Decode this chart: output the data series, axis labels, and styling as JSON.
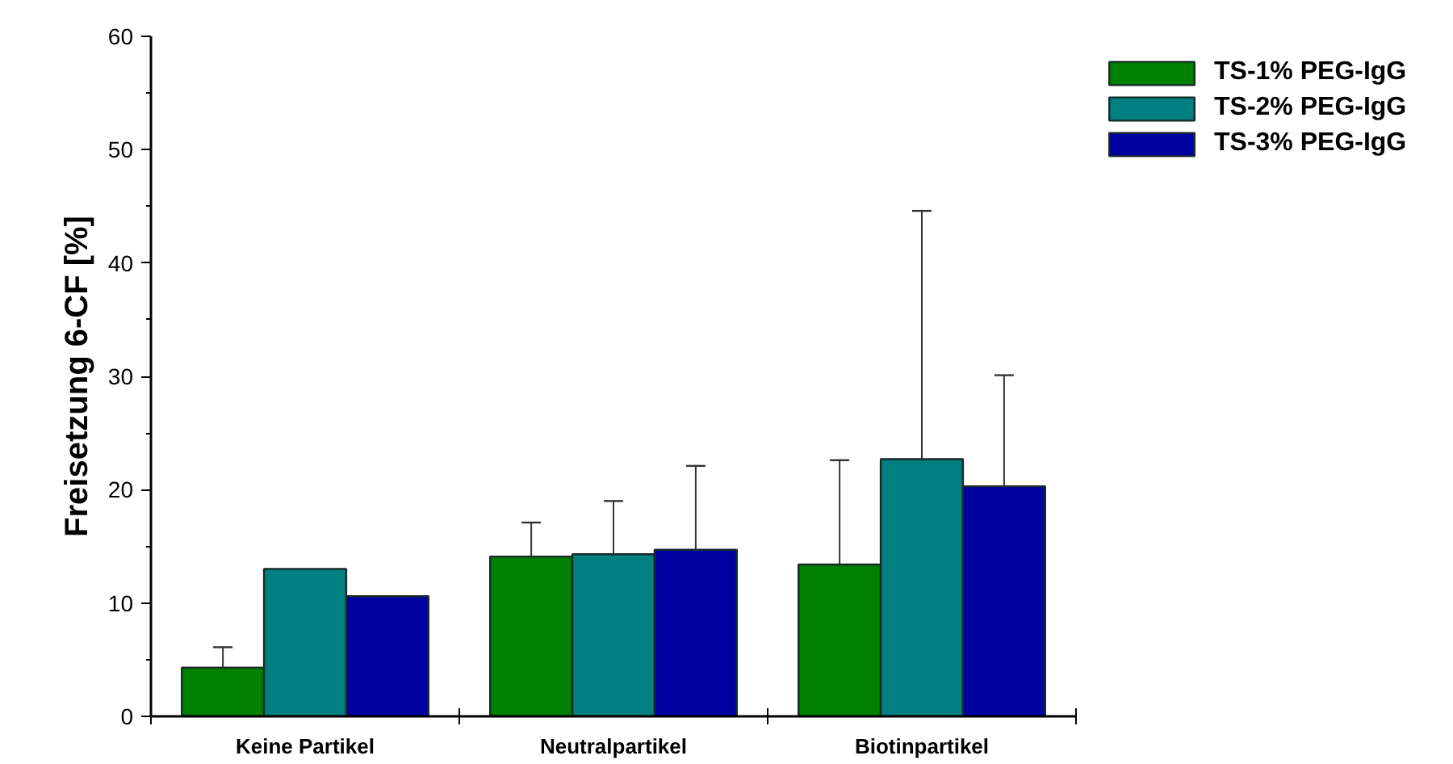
{
  "chart_data": {
    "type": "bar",
    "ylabel": "Freisetzung 6-CF [%]",
    "categories": [
      "Keine Partikel",
      "Neutralpartikel",
      "Biotinpartikel"
    ],
    "series": [
      {
        "name": "TS-1% PEG-IgG",
        "color": "#008000",
        "values": [
          4.3,
          14.1,
          13.4
        ],
        "errors": [
          [
            4.3,
            6.1
          ],
          [
            14.1,
            17.1
          ],
          [
            13.4,
            22.6
          ]
        ]
      },
      {
        "name": "TS-2% PEG-IgG",
        "color": "#008080",
        "values": [
          13.0,
          14.3,
          22.7
        ],
        "errors": [
          null,
          [
            14.3,
            19.0
          ],
          [
            22.7,
            44.6
          ]
        ]
      },
      {
        "name": "TS-3% PEG-IgG",
        "color": "#0000a0",
        "values": [
          10.6,
          14.7,
          20.3
        ],
        "errors": [
          null,
          [
            14.7,
            22.1
          ],
          [
            20.3,
            30.1
          ]
        ]
      }
    ],
    "ylim": [
      0,
      60
    ],
    "yticks": [
      0,
      10,
      20,
      30,
      40,
      50,
      60
    ],
    "grid": false,
    "legend": "top right"
  }
}
